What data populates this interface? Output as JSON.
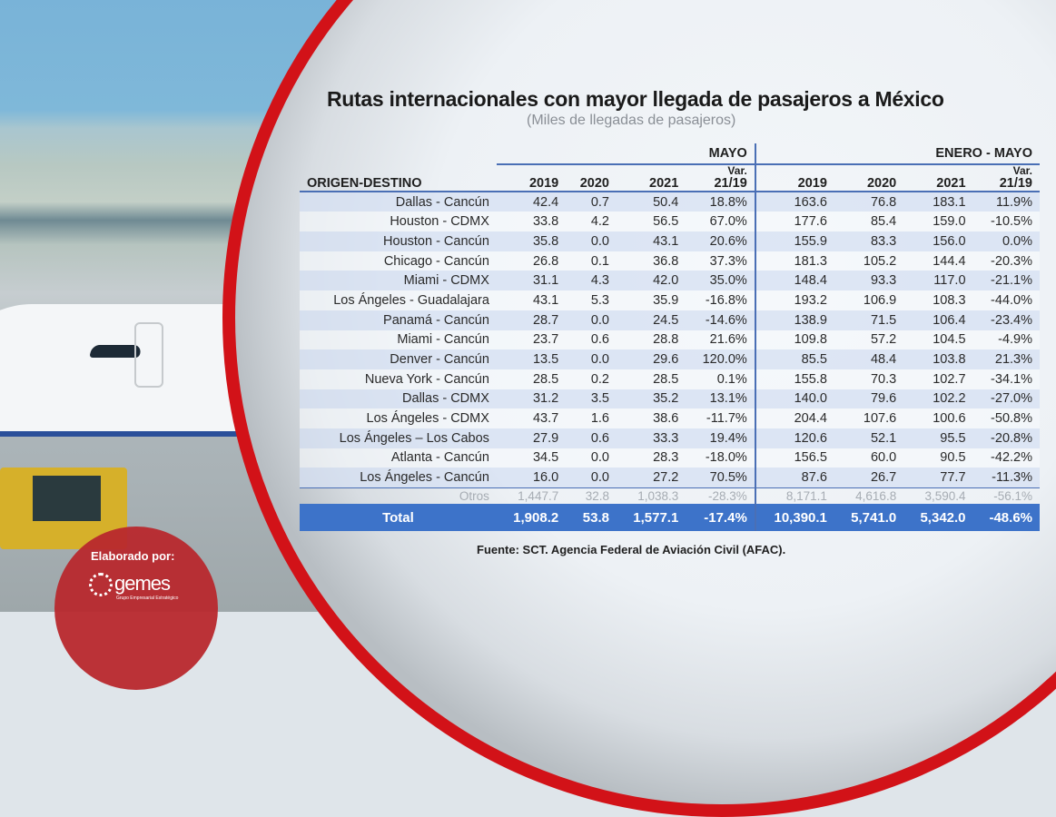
{
  "title": "Rutas internacionales con mayor llegada de pasajeros a México",
  "subtitle": "(Miles de llegadas de pasajeros)",
  "groups": {
    "mayo": "MAYO",
    "enero_mayo": "ENERO - MAYO"
  },
  "headers": {
    "origin": "ORIGEN-DESTINO",
    "y2019": "2019",
    "y2020": "2020",
    "y2021": "2021",
    "var_top": "Var.",
    "var_bottom": "21/19"
  },
  "rows": [
    {
      "route": "Dallas - Cancún",
      "m19": "42.4",
      "m20": "0.7",
      "m21": "50.4",
      "mv": "18.8%",
      "e19": "163.6",
      "e20": "76.8",
      "e21": "183.1",
      "ev": "11.9%"
    },
    {
      "route": "Houston - CDMX",
      "m19": "33.8",
      "m20": "4.2",
      "m21": "56.5",
      "mv": "67.0%",
      "e19": "177.6",
      "e20": "85.4",
      "e21": "159.0",
      "ev": "-10.5%"
    },
    {
      "route": "Houston - Cancún",
      "m19": "35.8",
      "m20": "0.0",
      "m21": "43.1",
      "mv": "20.6%",
      "e19": "155.9",
      "e20": "83.3",
      "e21": "156.0",
      "ev": "0.0%"
    },
    {
      "route": "Chicago - Cancún",
      "m19": "26.8",
      "m20": "0.1",
      "m21": "36.8",
      "mv": "37.3%",
      "e19": "181.3",
      "e20": "105.2",
      "e21": "144.4",
      "ev": "-20.3%"
    },
    {
      "route": "Miami - CDMX",
      "m19": "31.1",
      "m20": "4.3",
      "m21": "42.0",
      "mv": "35.0%",
      "e19": "148.4",
      "e20": "93.3",
      "e21": "117.0",
      "ev": "-21.1%"
    },
    {
      "route": "Los Ángeles - Guadalajara",
      "m19": "43.1",
      "m20": "5.3",
      "m21": "35.9",
      "mv": "-16.8%",
      "e19": "193.2",
      "e20": "106.9",
      "e21": "108.3",
      "ev": "-44.0%"
    },
    {
      "route": "Panamá - Cancún",
      "m19": "28.7",
      "m20": "0.0",
      "m21": "24.5",
      "mv": "-14.6%",
      "e19": "138.9",
      "e20": "71.5",
      "e21": "106.4",
      "ev": "-23.4%"
    },
    {
      "route": "Miami - Cancún",
      "m19": "23.7",
      "m20": "0.6",
      "m21": "28.8",
      "mv": "21.6%",
      "e19": "109.8",
      "e20": "57.2",
      "e21": "104.5",
      "ev": "-4.9%"
    },
    {
      "route": "Denver - Cancún",
      "m19": "13.5",
      "m20": "0.0",
      "m21": "29.6",
      "mv": "120.0%",
      "e19": "85.5",
      "e20": "48.4",
      "e21": "103.8",
      "ev": "21.3%"
    },
    {
      "route": "Nueva York - Cancún",
      "m19": "28.5",
      "m20": "0.2",
      "m21": "28.5",
      "mv": "0.1%",
      "e19": "155.8",
      "e20": "70.3",
      "e21": "102.7",
      "ev": "-34.1%"
    },
    {
      "route": "Dallas - CDMX",
      "m19": "31.2",
      "m20": "3.5",
      "m21": "35.2",
      "mv": "13.1%",
      "e19": "140.0",
      "e20": "79.6",
      "e21": "102.2",
      "ev": "-27.0%"
    },
    {
      "route": "Los Ángeles - CDMX",
      "m19": "43.7",
      "m20": "1.6",
      "m21": "38.6",
      "mv": "-11.7%",
      "e19": "204.4",
      "e20": "107.6",
      "e21": "100.6",
      "ev": "-50.8%"
    },
    {
      "route": "Los Ángeles – Los Cabos",
      "m19": "27.9",
      "m20": "0.6",
      "m21": "33.3",
      "mv": "19.4%",
      "e19": "120.6",
      "e20": "52.1",
      "e21": "95.5",
      "ev": "-20.8%"
    },
    {
      "route": "Atlanta - Cancún",
      "m19": "34.5",
      "m20": "0.0",
      "m21": "28.3",
      "mv": "-18.0%",
      "e19": "156.5",
      "e20": "60.0",
      "e21": "90.5",
      "ev": "-42.2%"
    },
    {
      "route": "Los Ángeles - Cancún",
      "m19": "16.0",
      "m20": "0.0",
      "m21": "27.2",
      "mv": "70.5%",
      "e19": "87.6",
      "e20": "26.7",
      "e21": "77.7",
      "ev": "-11.3%"
    }
  ],
  "otros": {
    "route": "Otros",
    "m19": "1,447.7",
    "m20": "32.8",
    "m21": "1,038.3",
    "mv": "-28.3%",
    "e19": "8,171.1",
    "e20": "4,616.8",
    "e21": "3,590.4",
    "ev": "-56.1%"
  },
  "total": {
    "route": "Total",
    "m19": "1,908.2",
    "m20": "53.8",
    "m21": "1,577.1",
    "mv": "-17.4%",
    "e19": "10,390.1",
    "e20": "5,741.0",
    "e21": "5,342.0",
    "ev": "-48.6%"
  },
  "source": "Fuente: SCT. Agencia Federal de Aviación Civil (AFAC).",
  "credit": {
    "label": "Elaborado por:",
    "logo": "gemes",
    "logo_sub": "Grupo Empresarial Estratégico"
  },
  "colors": {
    "accent_blue": "#3d73c9",
    "frame_red": "#d21218",
    "header_line": "#4a6fb5"
  },
  "chart_data": {
    "type": "table",
    "title": "Rutas internacionales con mayor llegada de pasajeros a México",
    "subtitle": "(Miles de llegadas de pasajeros)",
    "columns": [
      "ORIGEN-DESTINO",
      "MAYO 2019",
      "MAYO 2020",
      "MAYO 2021",
      "MAYO Var. 21/19",
      "ENERO-MAYO 2019",
      "ENERO-MAYO 2020",
      "ENERO-MAYO 2021",
      "ENERO-MAYO Var. 21/19"
    ],
    "rows": [
      [
        "Dallas - Cancún",
        42.4,
        0.7,
        50.4,
        "18.8%",
        163.6,
        76.8,
        183.1,
        "11.9%"
      ],
      [
        "Houston - CDMX",
        33.8,
        4.2,
        56.5,
        "67.0%",
        177.6,
        85.4,
        159.0,
        "-10.5%"
      ],
      [
        "Houston - Cancún",
        35.8,
        0.0,
        43.1,
        "20.6%",
        155.9,
        83.3,
        156.0,
        "0.0%"
      ],
      [
        "Chicago - Cancún",
        26.8,
        0.1,
        36.8,
        "37.3%",
        181.3,
        105.2,
        144.4,
        "-20.3%"
      ],
      [
        "Miami - CDMX",
        31.1,
        4.3,
        42.0,
        "35.0%",
        148.4,
        93.3,
        117.0,
        "-21.1%"
      ],
      [
        "Los Ángeles - Guadalajara",
        43.1,
        5.3,
        35.9,
        "-16.8%",
        193.2,
        106.9,
        108.3,
        "-44.0%"
      ],
      [
        "Panamá - Cancún",
        28.7,
        0.0,
        24.5,
        "-14.6%",
        138.9,
        71.5,
        106.4,
        "-23.4%"
      ],
      [
        "Miami - Cancún",
        23.7,
        0.6,
        28.8,
        "21.6%",
        109.8,
        57.2,
        104.5,
        "-4.9%"
      ],
      [
        "Denver - Cancún",
        13.5,
        0.0,
        29.6,
        "120.0%",
        85.5,
        48.4,
        103.8,
        "21.3%"
      ],
      [
        "Nueva York - Cancún",
        28.5,
        0.2,
        28.5,
        "0.1%",
        155.8,
        70.3,
        102.7,
        "-34.1%"
      ],
      [
        "Dallas - CDMX",
        31.2,
        3.5,
        35.2,
        "13.1%",
        140.0,
        79.6,
        102.2,
        "-27.0%"
      ],
      [
        "Los Ángeles - CDMX",
        43.7,
        1.6,
        38.6,
        "-11.7%",
        204.4,
        107.6,
        100.6,
        "-50.8%"
      ],
      [
        "Los Ángeles – Los Cabos",
        27.9,
        0.6,
        33.3,
        "19.4%",
        120.6,
        52.1,
        95.5,
        "-20.8%"
      ],
      [
        "Atlanta - Cancún",
        34.5,
        0.0,
        28.3,
        "-18.0%",
        156.5,
        60.0,
        90.5,
        "-42.2%"
      ],
      [
        "Los Ángeles - Cancún",
        16.0,
        0.0,
        27.2,
        "70.5%",
        87.6,
        26.7,
        77.7,
        "-11.3%"
      ],
      [
        "Otros",
        1447.7,
        32.8,
        1038.3,
        "-28.3%",
        8171.1,
        4616.8,
        3590.4,
        "-56.1%"
      ],
      [
        "Total",
        1908.2,
        53.8,
        1577.1,
        "-17.4%",
        10390.1,
        5741.0,
        5342.0,
        "-48.6%"
      ]
    ],
    "source": "Fuente: SCT. Agencia Federal de Aviación Civil (AFAC)."
  }
}
